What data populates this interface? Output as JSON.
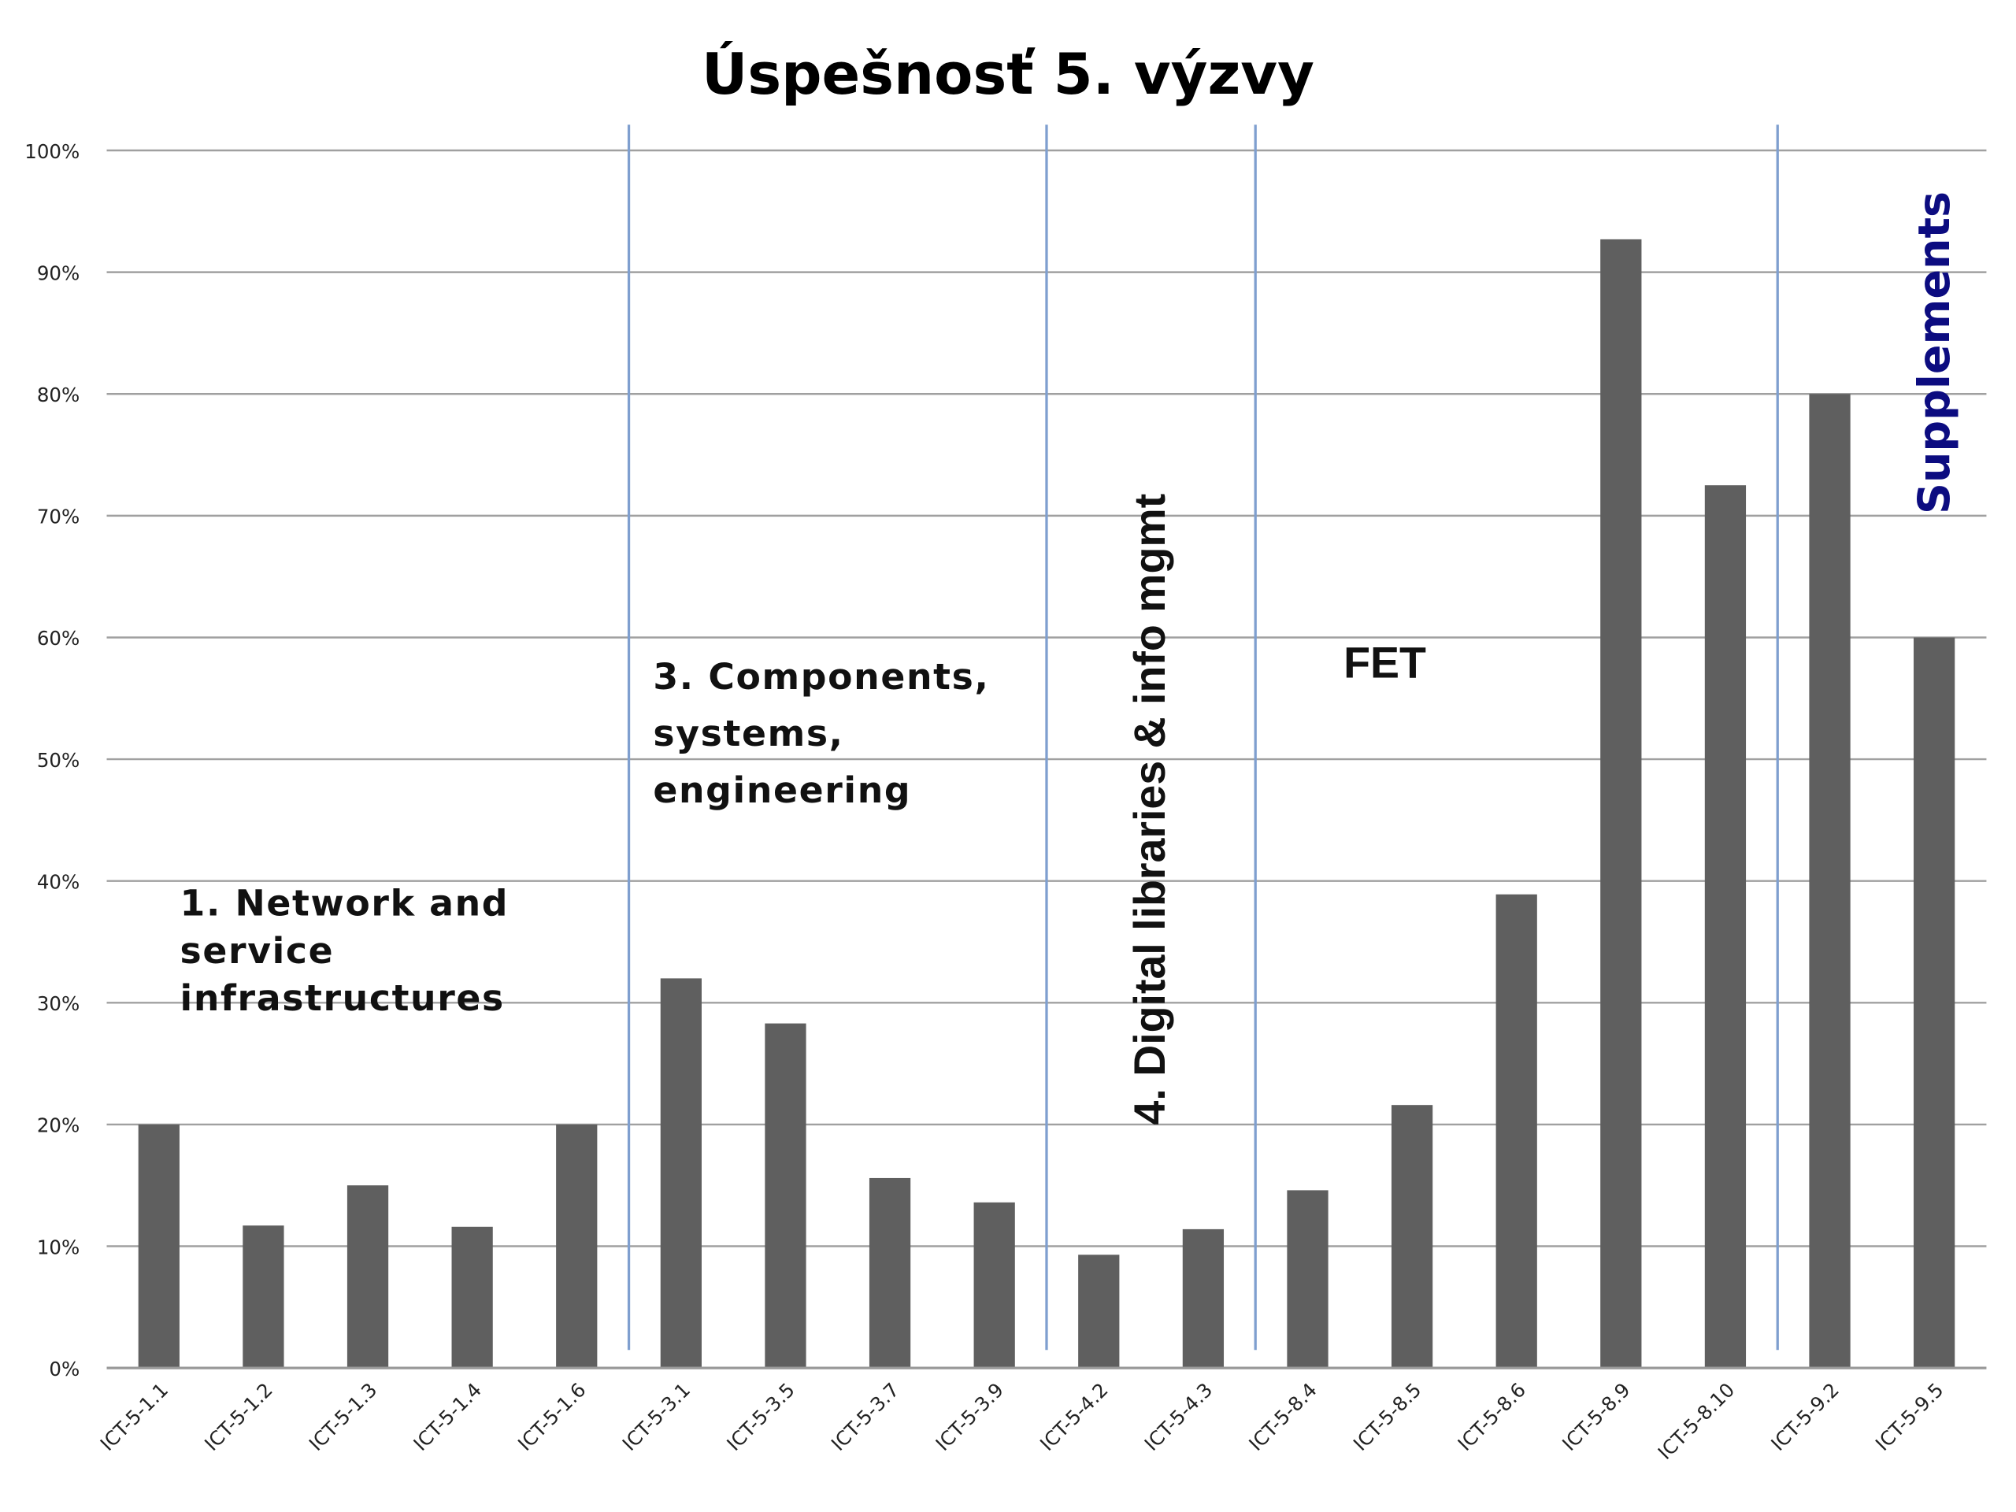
{
  "chart_data": {
    "type": "bar",
    "title": "Úspešnosť 5. výzvy",
    "xlabel": "",
    "ylabel": "",
    "ylim": [
      0,
      100
    ],
    "y_ticks": [
      "0%",
      "10%",
      "20%",
      "30%",
      "40%",
      "50%",
      "60%",
      "70%",
      "80%",
      "90%",
      "100%"
    ],
    "grid": true,
    "categories": [
      "ICT-5-1.1",
      "ICT-5-1.2",
      "ICT-5-1.3",
      "ICT-5-1.4",
      "ICT-5-1.6",
      "ICT-5-3.1",
      "ICT-5-3.5",
      "ICT-5-3.7",
      "ICT-5-3.9",
      "ICT-5-4.2",
      "ICT-5-4.3",
      "ICT-5-8.4",
      "ICT-5-8.5",
      "ICT-5-8.6",
      "ICT-5-8.9",
      "ICT-5-8.10",
      "ICT-5-9.2",
      "ICT-5-9.5"
    ],
    "values": [
      20,
      11.7,
      15,
      11.6,
      20,
      32,
      28.3,
      15.6,
      13.6,
      9.3,
      11.4,
      14.6,
      21.6,
      38.9,
      92.7,
      72.5,
      80,
      60
    ],
    "bar_color": "#5f5f5f",
    "divider_color": "#7f9fcf",
    "group_dividers_after_index": [
      4,
      8,
      10,
      15
    ],
    "annotations": {
      "group1": [
        "1. Network and",
        "service",
        "infrastructures"
      ],
      "group3": [
        "3. Components,",
        "systems,",
        "engineering"
      ],
      "group4": "4. Digital libraries & info mgmt",
      "fet": "FET",
      "supplements": "Supplements"
    },
    "supplements_color": "#0c0c80"
  }
}
